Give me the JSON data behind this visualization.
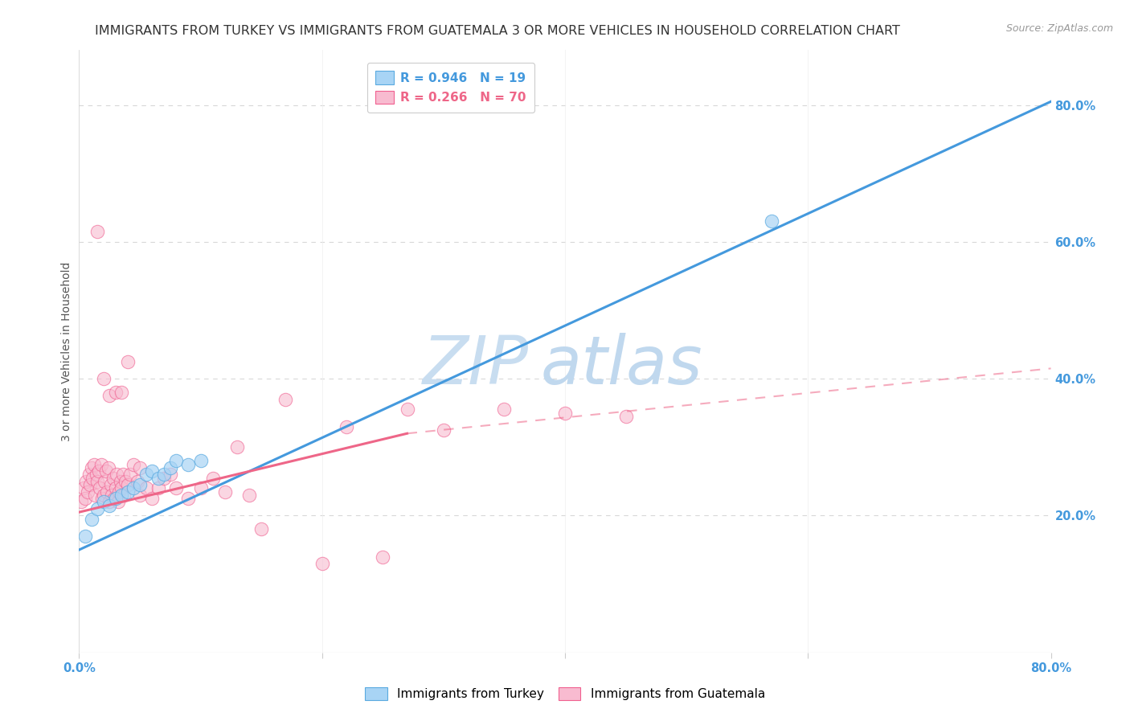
{
  "title": "IMMIGRANTS FROM TURKEY VS IMMIGRANTS FROM GUATEMALA 3 OR MORE VEHICLES IN HOUSEHOLD CORRELATION CHART",
  "source": "Source: ZipAtlas.com",
  "ylabel": "3 or more Vehicles in Household",
  "legend_turkey": "R = 0.946   N = 19",
  "legend_guatemala": "R = 0.266   N = 70",
  "turkey_color": "#a8d4f5",
  "turkey_edge_color": "#5aaae0",
  "guatemala_color": "#f8bbd0",
  "guatemala_edge_color": "#f06090",
  "turkey_line_color": "#4499dd",
  "guatemala_line_color": "#ee6688",
  "turkey_scatter": {
    "x": [
      0.5,
      1.0,
      1.5,
      2.0,
      2.5,
      3.0,
      3.5,
      4.0,
      4.5,
      5.0,
      5.5,
      6.0,
      6.5,
      7.0,
      7.5,
      8.0,
      9.0,
      10.0,
      57.0
    ],
    "y": [
      17.0,
      19.5,
      21.0,
      22.0,
      21.5,
      22.5,
      23.0,
      23.5,
      24.0,
      24.5,
      26.0,
      26.5,
      25.5,
      26.0,
      27.0,
      28.0,
      27.5,
      28.0,
      63.0
    ]
  },
  "guatemala_scatter": {
    "x": [
      0.2,
      0.4,
      0.5,
      0.6,
      0.7,
      0.8,
      0.9,
      1.0,
      1.1,
      1.2,
      1.3,
      1.4,
      1.5,
      1.6,
      1.7,
      1.8,
      1.9,
      2.0,
      2.1,
      2.2,
      2.3,
      2.4,
      2.5,
      2.6,
      2.7,
      2.8,
      2.9,
      3.0,
      3.1,
      3.2,
      3.3,
      3.4,
      3.5,
      3.6,
      3.7,
      3.8,
      4.0,
      4.2,
      4.5,
      4.8,
      5.0,
      5.5,
      6.0,
      6.5,
      7.0,
      7.5,
      8.0,
      9.0,
      10.0,
      11.0,
      12.0,
      13.0,
      14.0,
      15.0,
      17.0,
      20.0,
      22.0,
      25.0,
      27.0,
      30.0,
      35.0,
      40.0,
      45.0,
      1.5,
      2.0,
      2.5,
      3.0,
      3.5,
      4.0,
      5.0
    ],
    "y": [
      22.0,
      24.0,
      22.5,
      25.0,
      23.5,
      26.0,
      24.5,
      27.0,
      25.5,
      27.5,
      23.0,
      26.0,
      25.0,
      26.5,
      24.0,
      27.5,
      22.5,
      23.0,
      25.0,
      26.5,
      23.5,
      27.0,
      22.0,
      24.5,
      23.0,
      25.5,
      22.5,
      24.0,
      26.0,
      22.0,
      23.5,
      25.0,
      24.0,
      26.0,
      23.0,
      25.0,
      24.5,
      26.0,
      27.5,
      25.0,
      23.0,
      24.0,
      22.5,
      24.0,
      25.5,
      26.0,
      24.0,
      22.5,
      24.0,
      25.5,
      23.5,
      30.0,
      23.0,
      18.0,
      37.0,
      13.0,
      33.0,
      14.0,
      35.5,
      32.5,
      35.5,
      35.0,
      34.5,
      61.5,
      40.0,
      37.5,
      38.0,
      38.0,
      42.5,
      27.0
    ]
  },
  "turkey_line": {
    "x0": 0,
    "y0": 15.0,
    "x1": 80,
    "y1": 80.5
  },
  "guatemala_line_solid": {
    "x0": 0,
    "y0": 20.5,
    "x1": 27,
    "y1": 32.0
  },
  "guatemala_line_dashed": {
    "x0": 27,
    "y0": 32.0,
    "x1": 80,
    "y1": 41.5
  },
  "xlim": [
    0,
    80
  ],
  "ylim": [
    0,
    88
  ],
  "right_yticks": [
    20,
    40,
    60,
    80
  ],
  "right_yticklabels": [
    "20.0%",
    "40.0%",
    "60.0%",
    "80.0%"
  ],
  "watermark_zip": "ZIP",
  "watermark_atlas": "atlas",
  "watermark_color_zip": "#c8ddf0",
  "watermark_color_atlas": "#c0d8ee",
  "grid_color": "#d8d8d8",
  "title_fontsize": 11.5,
  "axis_label_fontsize": 10,
  "tick_fontsize": 10.5,
  "tick_color": "#4499dd",
  "legend_fontsize": 11
}
